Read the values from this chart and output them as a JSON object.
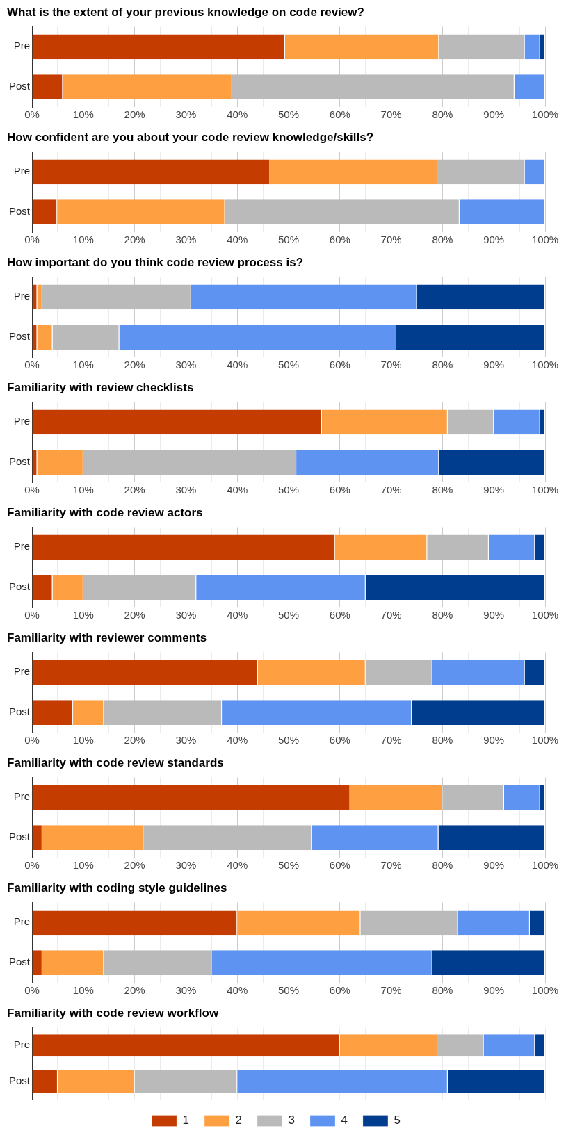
{
  "chart_data": [
    {
      "type": "bar",
      "orientation": "horizontal",
      "stacked": true,
      "title": "What is the extent of your previous knowledge on code review?",
      "categories": [
        "Pre",
        "Post"
      ],
      "xlim": [
        0,
        100
      ],
      "xticks": [
        {
          "value": 0,
          "label": "0%"
        },
        {
          "value": 5,
          "label": null
        },
        {
          "value": 10,
          "label": "10%"
        },
        {
          "value": 15,
          "label": null
        },
        {
          "value": 20,
          "label": "20%"
        },
        {
          "value": 25,
          "label": null
        },
        {
          "value": 30,
          "label": "30%"
        },
        {
          "value": 35,
          "label": null
        },
        {
          "value": 40,
          "label": "40%"
        },
        {
          "value": 45,
          "label": null
        },
        {
          "value": 50,
          "label": "50%"
        },
        {
          "value": 55,
          "label": null
        },
        {
          "value": 60,
          "label": "60%"
        },
        {
          "value": 65,
          "label": null
        },
        {
          "value": 70,
          "label": "70%"
        },
        {
          "value": 75,
          "label": null
        },
        {
          "value": 80,
          "label": "80%"
        },
        {
          "value": 85,
          "label": null
        },
        {
          "value": 90,
          "label": "90%"
        },
        {
          "value": 95,
          "label": null
        },
        {
          "value": 100,
          "label": "100%"
        }
      ],
      "grid": "x",
      "legend": false,
      "series": [
        {
          "color": "#c43c00",
          "values": [
            49.3,
            6
          ]
        },
        {
          "color": "#fe9f41",
          "values": [
            30,
            33
          ]
        },
        {
          "color": "#bababa",
          "values": [
            16.7,
            55
          ]
        },
        {
          "color": "#5f93f2",
          "values": [
            3,
            6
          ]
        },
        {
          "color": "#003d8f",
          "values": [
            1,
            0
          ]
        }
      ]
    },
    {
      "type": "bar",
      "orientation": "horizontal",
      "stacked": true,
      "title": "How confident are you about your code review knowledge/skills?",
      "categories": [
        "Pre",
        "Post"
      ],
      "xlim": [
        0,
        100
      ],
      "xticks": [
        {
          "value": 0,
          "label": "0%"
        },
        {
          "value": 5,
          "label": null
        },
        {
          "value": 10,
          "label": "10%"
        },
        {
          "value": 15,
          "label": null
        },
        {
          "value": 20,
          "label": "20%"
        },
        {
          "value": 25,
          "label": null
        },
        {
          "value": 30,
          "label": "30%"
        },
        {
          "value": 35,
          "label": null
        },
        {
          "value": 40,
          "label": "40%"
        },
        {
          "value": 45,
          "label": null
        },
        {
          "value": 50,
          "label": "50%"
        },
        {
          "value": 55,
          "label": null
        },
        {
          "value": 60,
          "label": "60%"
        },
        {
          "value": 65,
          "label": null
        },
        {
          "value": 70,
          "label": "70%"
        },
        {
          "value": 75,
          "label": null
        },
        {
          "value": 80,
          "label": "80%"
        },
        {
          "value": 85,
          "label": null
        },
        {
          "value": 90,
          "label": "90%"
        },
        {
          "value": 95,
          "label": null
        },
        {
          "value": 100,
          "label": "100%"
        }
      ],
      "grid": "x",
      "legend": false,
      "series": [
        {
          "color": "#c43c00",
          "values": [
            46.4,
            4.9
          ]
        },
        {
          "color": "#fe9f41",
          "values": [
            32.6,
            32.7
          ]
        },
        {
          "color": "#bababa",
          "values": [
            17,
            45.7
          ]
        },
        {
          "color": "#5f93f2",
          "values": [
            4,
            16.7
          ]
        },
        {
          "color": "#003d8f",
          "values": [
            0,
            0
          ]
        }
      ]
    },
    {
      "type": "bar",
      "orientation": "horizontal",
      "stacked": true,
      "title": "How important do you think code review process is?",
      "categories": [
        "Pre",
        "Post"
      ],
      "xlim": [
        0,
        100
      ],
      "xticks": [
        {
          "value": 0,
          "label": "0%"
        },
        {
          "value": 5,
          "label": null
        },
        {
          "value": 10,
          "label": "10%"
        },
        {
          "value": 15,
          "label": null
        },
        {
          "value": 20,
          "label": "20%"
        },
        {
          "value": 25,
          "label": null
        },
        {
          "value": 30,
          "label": "30%"
        },
        {
          "value": 35,
          "label": null
        },
        {
          "value": 40,
          "label": "40%"
        },
        {
          "value": 45,
          "label": null
        },
        {
          "value": 50,
          "label": "50%"
        },
        {
          "value": 55,
          "label": null
        },
        {
          "value": 60,
          "label": "60%"
        },
        {
          "value": 65,
          "label": null
        },
        {
          "value": 70,
          "label": "70%"
        },
        {
          "value": 75,
          "label": null
        },
        {
          "value": 80,
          "label": "80%"
        },
        {
          "value": 85,
          "label": null
        },
        {
          "value": 90,
          "label": "90%"
        },
        {
          "value": 95,
          "label": null
        },
        {
          "value": 100,
          "label": "100%"
        }
      ],
      "grid": "x",
      "legend": false,
      "series": [
        {
          "color": "#c43c00",
          "values": [
            1,
            1
          ]
        },
        {
          "color": "#fe9f41",
          "values": [
            1,
            3
          ]
        },
        {
          "color": "#bababa",
          "values": [
            29,
            13
          ]
        },
        {
          "color": "#5f93f2",
          "values": [
            44,
            54
          ]
        },
        {
          "color": "#003d8f",
          "values": [
            25,
            29
          ]
        }
      ]
    },
    {
      "type": "bar",
      "orientation": "horizontal",
      "stacked": true,
      "title": "Familiarity with review checklists",
      "categories": [
        "Pre",
        "Post"
      ],
      "xlim": [
        0,
        100
      ],
      "xticks": [
        {
          "value": 0,
          "label": "0%"
        },
        {
          "value": 5,
          "label": null
        },
        {
          "value": 10,
          "label": "10%"
        },
        {
          "value": 15,
          "label": null
        },
        {
          "value": 20,
          "label": "20%"
        },
        {
          "value": 25,
          "label": null
        },
        {
          "value": 30,
          "label": "30%"
        },
        {
          "value": 35,
          "label": null
        },
        {
          "value": 40,
          "label": "40%"
        },
        {
          "value": 45,
          "label": null
        },
        {
          "value": 50,
          "label": "50%"
        },
        {
          "value": 55,
          "label": null
        },
        {
          "value": 60,
          "label": "60%"
        },
        {
          "value": 65,
          "label": null
        },
        {
          "value": 70,
          "label": "70%"
        },
        {
          "value": 75,
          "label": null
        },
        {
          "value": 80,
          "label": "80%"
        },
        {
          "value": 85,
          "label": null
        },
        {
          "value": 90,
          "label": "90%"
        },
        {
          "value": 95,
          "label": null
        },
        {
          "value": 100,
          "label": "100%"
        }
      ],
      "grid": "x",
      "legend": false,
      "series": [
        {
          "color": "#c43c00",
          "values": [
            56.5,
            1
          ]
        },
        {
          "color": "#fe9f41",
          "values": [
            24.5,
            9
          ]
        },
        {
          "color": "#bababa",
          "values": [
            9,
            41.5
          ]
        },
        {
          "color": "#5f93f2",
          "values": [
            9,
            27.8
          ]
        },
        {
          "color": "#003d8f",
          "values": [
            1,
            20.7
          ]
        }
      ]
    },
    {
      "type": "bar",
      "orientation": "horizontal",
      "stacked": true,
      "title": "Familiarity with code review actors",
      "categories": [
        "Pre",
        "Post"
      ],
      "xlim": [
        0,
        100
      ],
      "xticks": [
        {
          "value": 0,
          "label": "0%"
        },
        {
          "value": 5,
          "label": null
        },
        {
          "value": 10,
          "label": "10%"
        },
        {
          "value": 15,
          "label": null
        },
        {
          "value": 20,
          "label": "20%"
        },
        {
          "value": 25,
          "label": null
        },
        {
          "value": 30,
          "label": "30%"
        },
        {
          "value": 35,
          "label": null
        },
        {
          "value": 40,
          "label": "40%"
        },
        {
          "value": 45,
          "label": null
        },
        {
          "value": 50,
          "label": "50%"
        },
        {
          "value": 55,
          "label": null
        },
        {
          "value": 60,
          "label": "60%"
        },
        {
          "value": 65,
          "label": null
        },
        {
          "value": 70,
          "label": "70%"
        },
        {
          "value": 75,
          "label": null
        },
        {
          "value": 80,
          "label": "80%"
        },
        {
          "value": 85,
          "label": null
        },
        {
          "value": 90,
          "label": "90%"
        },
        {
          "value": 95,
          "label": null
        },
        {
          "value": 100,
          "label": "100%"
        }
      ],
      "grid": "x",
      "legend": false,
      "series": [
        {
          "color": "#c43c00",
          "values": [
            59,
            4
          ]
        },
        {
          "color": "#fe9f41",
          "values": [
            18,
            6
          ]
        },
        {
          "color": "#bababa",
          "values": [
            12,
            22
          ]
        },
        {
          "color": "#5f93f2",
          "values": [
            9,
            33
          ]
        },
        {
          "color": "#003d8f",
          "values": [
            2,
            35
          ]
        }
      ]
    },
    {
      "type": "bar",
      "orientation": "horizontal",
      "stacked": true,
      "title": "Familiarity with reviewer comments",
      "categories": [
        "Pre",
        "Post"
      ],
      "xlim": [
        0,
        100
      ],
      "xticks": [
        {
          "value": 0,
          "label": "0%"
        },
        {
          "value": 5,
          "label": null
        },
        {
          "value": 10,
          "label": "10%"
        },
        {
          "value": 15,
          "label": null
        },
        {
          "value": 20,
          "label": "20%"
        },
        {
          "value": 25,
          "label": null
        },
        {
          "value": 30,
          "label": "30%"
        },
        {
          "value": 35,
          "label": null
        },
        {
          "value": 40,
          "label": "40%"
        },
        {
          "value": 45,
          "label": null
        },
        {
          "value": 50,
          "label": "50%"
        },
        {
          "value": 55,
          "label": null
        },
        {
          "value": 60,
          "label": "60%"
        },
        {
          "value": 65,
          "label": null
        },
        {
          "value": 70,
          "label": "70%"
        },
        {
          "value": 75,
          "label": null
        },
        {
          "value": 80,
          "label": "80%"
        },
        {
          "value": 85,
          "label": null
        },
        {
          "value": 90,
          "label": "90%"
        },
        {
          "value": 95,
          "label": null
        },
        {
          "value": 100,
          "label": "100%"
        }
      ],
      "grid": "x",
      "legend": false,
      "series": [
        {
          "color": "#c43c00",
          "values": [
            44,
            8
          ]
        },
        {
          "color": "#fe9f41",
          "values": [
            21,
            6
          ]
        },
        {
          "color": "#bababa",
          "values": [
            13,
            23
          ]
        },
        {
          "color": "#5f93f2",
          "values": [
            18,
            37
          ]
        },
        {
          "color": "#003d8f",
          "values": [
            4,
            26
          ]
        }
      ]
    },
    {
      "type": "bar",
      "orientation": "horizontal",
      "stacked": true,
      "title": "Familiarity with code review standards",
      "categories": [
        "Pre",
        "Post"
      ],
      "xlim": [
        0,
        100
      ],
      "xticks": [
        {
          "value": 0,
          "label": "0%"
        },
        {
          "value": 5,
          "label": null
        },
        {
          "value": 10,
          "label": "10%"
        },
        {
          "value": 15,
          "label": null
        },
        {
          "value": 20,
          "label": "20%"
        },
        {
          "value": 25,
          "label": null
        },
        {
          "value": 30,
          "label": "30%"
        },
        {
          "value": 35,
          "label": null
        },
        {
          "value": 40,
          "label": "40%"
        },
        {
          "value": 45,
          "label": null
        },
        {
          "value": 50,
          "label": "50%"
        },
        {
          "value": 55,
          "label": null
        },
        {
          "value": 60,
          "label": "60%"
        },
        {
          "value": 65,
          "label": null
        },
        {
          "value": 70,
          "label": "70%"
        },
        {
          "value": 75,
          "label": null
        },
        {
          "value": 80,
          "label": "80%"
        },
        {
          "value": 85,
          "label": null
        },
        {
          "value": 90,
          "label": "90%"
        },
        {
          "value": 95,
          "label": null
        },
        {
          "value": 100,
          "label": "100%"
        }
      ],
      "grid": "x",
      "legend": false,
      "series": [
        {
          "color": "#c43c00",
          "values": [
            62,
            2
          ]
        },
        {
          "color": "#fe9f41",
          "values": [
            18,
            19.7
          ]
        },
        {
          "color": "#bababa",
          "values": [
            12,
            32.8
          ]
        },
        {
          "color": "#5f93f2",
          "values": [
            7,
            24.7
          ]
        },
        {
          "color": "#003d8f",
          "values": [
            1,
            20.8
          ]
        }
      ]
    },
    {
      "type": "bar",
      "orientation": "horizontal",
      "stacked": true,
      "title": "Familiarity with coding style guidelines",
      "categories": [
        "Pre",
        "Post"
      ],
      "xlim": [
        0,
        100
      ],
      "xticks": [
        {
          "value": 0,
          "label": "0%"
        },
        {
          "value": 5,
          "label": null
        },
        {
          "value": 10,
          "label": "10%"
        },
        {
          "value": 15,
          "label": null
        },
        {
          "value": 20,
          "label": "20%"
        },
        {
          "value": 25,
          "label": null
        },
        {
          "value": 30,
          "label": "30%"
        },
        {
          "value": 35,
          "label": null
        },
        {
          "value": 40,
          "label": "40%"
        },
        {
          "value": 45,
          "label": null
        },
        {
          "value": 50,
          "label": "50%"
        },
        {
          "value": 55,
          "label": null
        },
        {
          "value": 60,
          "label": "60%"
        },
        {
          "value": 65,
          "label": null
        },
        {
          "value": 70,
          "label": "70%"
        },
        {
          "value": 75,
          "label": null
        },
        {
          "value": 80,
          "label": "80%"
        },
        {
          "value": 85,
          "label": null
        },
        {
          "value": 90,
          "label": "90%"
        },
        {
          "value": 95,
          "label": null
        },
        {
          "value": 100,
          "label": "100%"
        }
      ],
      "grid": "x",
      "legend": false,
      "series": [
        {
          "color": "#c43c00",
          "values": [
            40,
            2
          ]
        },
        {
          "color": "#fe9f41",
          "values": [
            24,
            12
          ]
        },
        {
          "color": "#bababa",
          "values": [
            19,
            21
          ]
        },
        {
          "color": "#5f93f2",
          "values": [
            14,
            43
          ]
        },
        {
          "color": "#003d8f",
          "values": [
            3,
            22
          ]
        }
      ]
    },
    {
      "type": "bar",
      "orientation": "horizontal",
      "stacked": true,
      "title": "Familiarity with code review workflow",
      "categories": [
        "Pre",
        "Post"
      ],
      "xlim": [
        0,
        100
      ],
      "xticks": [
        {
          "value": 0,
          "label": null
        },
        {
          "value": 5,
          "label": null
        },
        {
          "value": 10,
          "label": null
        },
        {
          "value": 15,
          "label": null
        },
        {
          "value": 20,
          "label": null
        },
        {
          "value": 25,
          "label": null
        },
        {
          "value": 30,
          "label": null
        },
        {
          "value": 35,
          "label": null
        },
        {
          "value": 40,
          "label": null
        },
        {
          "value": 45,
          "label": null
        },
        {
          "value": 50,
          "label": null
        },
        {
          "value": 55,
          "label": null
        },
        {
          "value": 60,
          "label": null
        },
        {
          "value": 65,
          "label": null
        },
        {
          "value": 70,
          "label": null
        },
        {
          "value": 75,
          "label": null
        },
        {
          "value": 80,
          "label": null
        },
        {
          "value": 85,
          "label": null
        },
        {
          "value": 90,
          "label": null
        },
        {
          "value": 95,
          "label": null
        },
        {
          "value": 100,
          "label": null
        }
      ],
      "grid": "x",
      "tick_labels": "y",
      "legend": "bottom",
      "series": [
        {
          "name": "1",
          "color": "#c43c00",
          "values": [
            60,
            5
          ]
        },
        {
          "name": "2",
          "color": "#fe9f41",
          "values": [
            19,
            15
          ]
        },
        {
          "name": "3",
          "color": "#bababa",
          "values": [
            9,
            20
          ]
        },
        {
          "name": "4",
          "color": "#5f93f2",
          "values": [
            10,
            41
          ]
        },
        {
          "name": "5",
          "color": "#003d8f",
          "values": [
            2,
            19
          ]
        }
      ]
    }
  ]
}
